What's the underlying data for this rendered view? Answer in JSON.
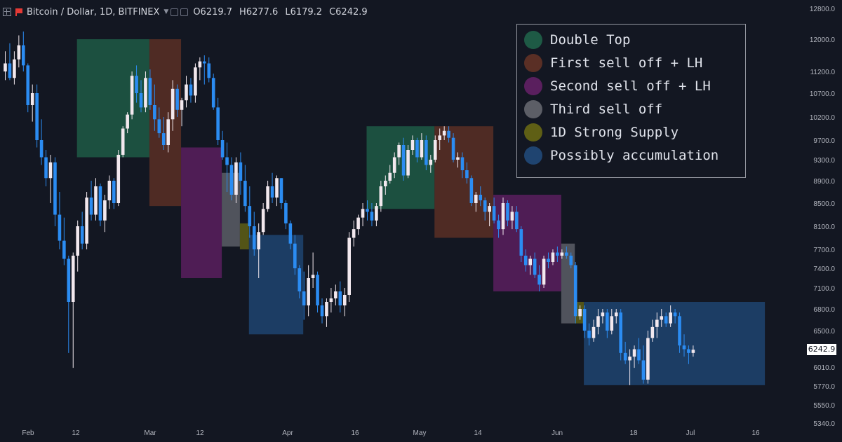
{
  "header": {
    "symbol": "Bitcoin / Dollar, 1D, BITFINEX",
    "open_label": "O",
    "open": "6219.7",
    "high_label": "H",
    "high": "6277.6",
    "low_label": "L",
    "low": "6179.2",
    "close_label": "C",
    "close": "6242.9"
  },
  "legend": [
    {
      "label": "Double Top",
      "color": "#1e5a45"
    },
    {
      "label": "First sell off + LH",
      "color": "#5a2f25"
    },
    {
      "label": "Second sell off + LH",
      "color": "#5a1f5e"
    },
    {
      "label": "Third sell off",
      "color": "#5c5e66"
    },
    {
      "label": "1D Strong Supply",
      "color": "#5f5f15"
    },
    {
      "label": "Possibly accumulation",
      "color": "#1f4470"
    }
  ],
  "current_price": "6242.9",
  "chart_data": {
    "type": "candlestick",
    "title": "Bitcoin / Dollar, 1D, BITFINEX",
    "ylim": [
      5340,
      12800
    ],
    "y_ticks": [
      "12800.0",
      "12000.0",
      "11200.0",
      "10700.0",
      "10200.0",
      "9700.0",
      "9300.0",
      "8900.0",
      "8500.0",
      "8100.0",
      "7700.0",
      "7400.0",
      "7100.0",
      "6800.0",
      "6500.0",
      "6010.0",
      "5770.0",
      "5550.0",
      "5340.0"
    ],
    "x_ticks": [
      "Feb",
      "12",
      "Mar",
      "12",
      "Apr",
      "16",
      "May",
      "14",
      "Jun",
      "18",
      "Jul",
      "16"
    ],
    "zones": [
      {
        "type": "Double Top",
        "x_start": "Feb 15",
        "x_end": "Mar 3",
        "top": 12000,
        "bottom": 9350
      },
      {
        "type": "First sell off + LH",
        "x_start": "Mar 3",
        "x_end": "Mar 10",
        "top": 12000,
        "bottom": 8450
      },
      {
        "type": "Second sell off + LH",
        "x_start": "Mar 10",
        "x_end": "Mar 19",
        "top": 9550,
        "bottom": 7250
      },
      {
        "type": "Third sell off",
        "x_start": "Mar 19",
        "x_end": "Mar 23",
        "top": 9050,
        "bottom": 7750
      },
      {
        "type": "1D Strong Supply",
        "x_start": "Mar 23",
        "x_end": "Mar 25",
        "top": 8150,
        "bottom": 7700
      },
      {
        "type": "Possibly accumulation",
        "x_start": "Mar 25",
        "x_end": "Apr 6",
        "top": 7950,
        "bottom": 6450
      },
      {
        "type": "Double Top",
        "x_start": "Apr 20",
        "x_end": "May 5",
        "top": 10000,
        "bottom": 8400
      },
      {
        "type": "First sell off + LH",
        "x_start": "May 5",
        "x_end": "May 18",
        "top": 10000,
        "bottom": 7900
      },
      {
        "type": "Second sell off + LH",
        "x_start": "May 18",
        "x_end": "Jun 2",
        "top": 8650,
        "bottom": 7050
      },
      {
        "type": "Third sell off",
        "x_start": "Jun 2",
        "x_end": "Jun 5",
        "top": 7800,
        "bottom": 6600
      },
      {
        "type": "1D Strong Supply",
        "x_start": "Jun 5",
        "x_end": "Jun 7",
        "top": 6900,
        "bottom": 6600
      },
      {
        "type": "Possibly accumulation",
        "x_start": "Jun 7",
        "x_end": "Jul 17",
        "top": 6900,
        "bottom": 5780
      }
    ],
    "candles": [
      [
        11200,
        11700,
        11000,
        11400
      ],
      [
        11400,
        11900,
        11000,
        11050
      ],
      [
        11050,
        11700,
        10900,
        11500
      ],
      [
        11500,
        12100,
        11300,
        11850
      ],
      [
        11850,
        12200,
        11200,
        11350
      ],
      [
        11350,
        11400,
        10300,
        10450
      ],
      [
        10450,
        10900,
        10100,
        10700
      ],
      [
        10700,
        10900,
        9550,
        9700
      ],
      [
        9700,
        10150,
        9200,
        9350
      ],
      [
        9350,
        9500,
        8800,
        8950
      ],
      [
        8950,
        9400,
        8500,
        9250
      ],
      [
        9250,
        9350,
        8100,
        8300
      ],
      [
        8300,
        8700,
        7700,
        7850
      ],
      [
        7850,
        8250,
        7450,
        7550
      ],
      [
        7550,
        7600,
        6200,
        6900
      ],
      [
        6900,
        7650,
        6000,
        7600
      ],
      [
        7600,
        8200,
        7350,
        8100
      ],
      [
        8100,
        8350,
        7700,
        7800
      ],
      [
        7800,
        8700,
        7700,
        8600
      ],
      [
        8600,
        8900,
        8200,
        8300
      ],
      [
        8300,
        8950,
        8200,
        8800
      ],
      [
        8800,
        8850,
        8100,
        8200
      ],
      [
        8200,
        8650,
        8000,
        8550
      ],
      [
        8550,
        9000,
        8400,
        8900
      ],
      [
        8900,
        8950,
        8400,
        8500
      ],
      [
        8500,
        9500,
        8450,
        9400
      ],
      [
        9400,
        10000,
        9350,
        9950
      ],
      [
        9950,
        10300,
        9850,
        10250
      ],
      [
        10250,
        11200,
        10150,
        11100
      ],
      [
        11100,
        11350,
        10500,
        10700
      ],
      [
        10700,
        11000,
        10300,
        10400
      ],
      [
        10400,
        11200,
        10300,
        11050
      ],
      [
        11050,
        11250,
        10350,
        10450
      ],
      [
        10450,
        10900,
        9900,
        10150
      ],
      [
        10150,
        10400,
        9750,
        9850
      ],
      [
        9850,
        10200,
        9500,
        9600
      ],
      [
        9600,
        10300,
        9450,
        10150
      ],
      [
        10150,
        11000,
        9900,
        10800
      ],
      [
        10800,
        10900,
        10200,
        10350
      ],
      [
        10350,
        10600,
        10000,
        10550
      ],
      [
        10550,
        11100,
        10400,
        10900
      ],
      [
        10900,
        11050,
        10500,
        10650
      ],
      [
        10650,
        11400,
        10500,
        11300
      ],
      [
        11300,
        11550,
        11000,
        11450
      ],
      [
        11450,
        11600,
        10900,
        11400
      ],
      [
        11400,
        11550,
        10950,
        11050
      ],
      [
        11050,
        11150,
        10350,
        10400
      ],
      [
        10400,
        10600,
        9600,
        9700
      ],
      [
        9700,
        9900,
        9300,
        9350
      ],
      [
        9350,
        9650,
        8700,
        9200
      ],
      [
        9200,
        9350,
        8550,
        8650
      ],
      [
        8650,
        9350,
        8500,
        9250
      ],
      [
        9250,
        9450,
        8650,
        8900
      ],
      [
        8900,
        9200,
        8350,
        8450
      ],
      [
        8450,
        8800,
        7900,
        8100
      ],
      [
        8100,
        8350,
        7600,
        7700
      ],
      [
        7700,
        8150,
        7250,
        8000
      ],
      [
        8000,
        8500,
        7950,
        8400
      ],
      [
        8400,
        8900,
        8350,
        8800
      ],
      [
        8800,
        9050,
        8500,
        8600
      ],
      [
        8600,
        9000,
        8450,
        8950
      ],
      [
        8950,
        8950,
        8400,
        8500
      ],
      [
        8500,
        8550,
        8050,
        8150
      ],
      [
        8150,
        8200,
        7700,
        7800
      ],
      [
        7800,
        7950,
        7300,
        7400
      ],
      [
        7400,
        7450,
        6950,
        7050
      ],
      [
        7050,
        7350,
        6650,
        6850
      ],
      [
        6850,
        7450,
        6700,
        7250
      ],
      [
        7250,
        7650,
        7100,
        7300
      ],
      [
        7300,
        7350,
        6750,
        6850
      ],
      [
        6850,
        6950,
        6600,
        6700
      ],
      [
        6700,
        6950,
        6550,
        6900
      ],
      [
        6900,
        7100,
        6750,
        6950
      ],
      [
        6950,
        7150,
        6850,
        7050
      ],
      [
        7050,
        7200,
        6750,
        6850
      ],
      [
        6850,
        7100,
        6700,
        7000
      ],
      [
        7000,
        8000,
        6900,
        7900
      ],
      [
        7900,
        8200,
        7750,
        8050
      ],
      [
        8050,
        8300,
        7950,
        8250
      ],
      [
        8250,
        8500,
        8100,
        8400
      ],
      [
        8400,
        8550,
        8200,
        8350
      ],
      [
        8350,
        8500,
        8100,
        8200
      ],
      [
        8200,
        8500,
        8100,
        8450
      ],
      [
        8450,
        8900,
        8350,
        8800
      ],
      [
        8800,
        9000,
        8650,
        8900
      ],
      [
        8900,
        9200,
        8850,
        9050
      ],
      [
        9050,
        9450,
        8950,
        9350
      ],
      [
        9350,
        9650,
        9200,
        9600
      ],
      [
        9600,
        9750,
        8900,
        9000
      ],
      [
        9000,
        9600,
        8950,
        9500
      ],
      [
        9500,
        9800,
        9400,
        9700
      ],
      [
        9700,
        9750,
        9250,
        9350
      ],
      [
        9350,
        9850,
        9300,
        9700
      ],
      [
        9700,
        9800,
        9100,
        9200
      ],
      [
        9200,
        9400,
        9050,
        9300
      ],
      [
        9300,
        9800,
        9250,
        9700
      ],
      [
        9700,
        9950,
        9500,
        9800
      ],
      [
        9800,
        10000,
        9700,
        9900
      ],
      [
        9900,
        10000,
        9650,
        9750
      ],
      [
        9750,
        9850,
        9250,
        9300
      ],
      [
        9300,
        9450,
        9150,
        9350
      ],
      [
        9350,
        9450,
        8950,
        9100
      ],
      [
        9100,
        9250,
        8850,
        8950
      ],
      [
        8950,
        9000,
        8450,
        8500
      ],
      [
        8500,
        8700,
        8350,
        8650
      ],
      [
        8650,
        8800,
        8450,
        8550
      ],
      [
        8550,
        8600,
        8200,
        8350
      ],
      [
        8350,
        8500,
        8100,
        8450
      ],
      [
        8450,
        8600,
        8150,
        8200
      ],
      [
        8200,
        8300,
        7900,
        8050
      ],
      [
        8050,
        8600,
        7950,
        8500
      ],
      [
        8500,
        8550,
        8100,
        8200
      ],
      [
        8200,
        8450,
        8050,
        8350
      ],
      [
        8350,
        8450,
        8000,
        8050
      ],
      [
        8050,
        8100,
        7500,
        7600
      ],
      [
        7600,
        7700,
        7350,
        7450
      ],
      [
        7450,
        7600,
        7300,
        7550
      ],
      [
        7550,
        7650,
        7250,
        7300
      ],
      [
        7300,
        7450,
        7050,
        7150
      ],
      [
        7150,
        7600,
        7100,
        7550
      ],
      [
        7550,
        7650,
        7400,
        7500
      ],
      [
        7500,
        7700,
        7450,
        7650
      ],
      [
        7650,
        7750,
        7500,
        7600
      ],
      [
        7600,
        7700,
        7550,
        7650
      ],
      [
        7650,
        7750,
        7550,
        7600
      ],
      [
        7600,
        7650,
        7400,
        7450
      ],
      [
        7450,
        7500,
        6600,
        6700
      ],
      [
        6700,
        6850,
        6650,
        6800
      ],
      [
        6800,
        6850,
        6400,
        6500
      ],
      [
        6500,
        6600,
        6300,
        6400
      ],
      [
        6400,
        6650,
        6350,
        6550
      ],
      [
        6550,
        6800,
        6450,
        6700
      ],
      [
        6700,
        6800,
        6600,
        6750
      ],
      [
        6750,
        6800,
        6400,
        6500
      ],
      [
        6500,
        6800,
        6450,
        6700
      ],
      [
        6700,
        6800,
        6600,
        6750
      ],
      [
        6750,
        6800,
        6100,
        6200
      ],
      [
        6200,
        6350,
        6050,
        6100
      ],
      [
        6100,
        6250,
        5780,
        6150
      ],
      [
        6150,
        6300,
        6000,
        6250
      ],
      [
        6250,
        6400,
        6050,
        6100
      ],
      [
        6100,
        6300,
        5800,
        5850
      ],
      [
        5850,
        6500,
        5800,
        6400
      ],
      [
        6400,
        6650,
        6350,
        6550
      ],
      [
        6550,
        6750,
        6400,
        6650
      ],
      [
        6650,
        6800,
        6550,
        6700
      ],
      [
        6700,
        6750,
        6550,
        6600
      ],
      [
        6600,
        6850,
        6550,
        6750
      ],
      [
        6750,
        6800,
        6600,
        6700
      ],
      [
        6700,
        6750,
        6200,
        6300
      ],
      [
        6300,
        6450,
        6150,
        6250
      ],
      [
        6250,
        6300,
        6050,
        6200
      ],
      [
        6200,
        6300,
        6150,
        6243
      ]
    ]
  }
}
